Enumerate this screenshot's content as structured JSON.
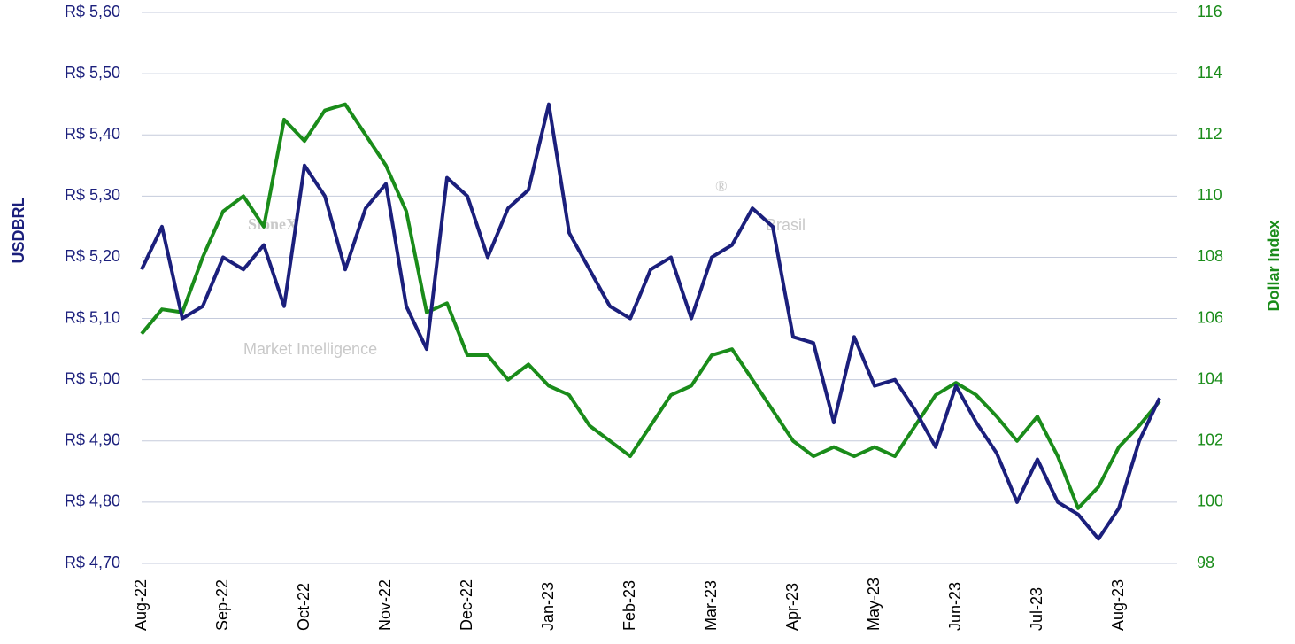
{
  "chart_data": {
    "type": "line",
    "y_label": "USDBRL",
    "y2_label": "Dollar Index",
    "watermark": {
      "brand": "StoneX",
      "mark": "®",
      "region": "Brasil",
      "tagline": "Market Intelligence"
    },
    "categories": [
      "Aug-22",
      null,
      null,
      null,
      "Sep-22",
      null,
      null,
      null,
      "Oct-22",
      null,
      null,
      null,
      "Nov-22",
      null,
      null,
      null,
      "Dec-22",
      null,
      null,
      null,
      "Jan-23",
      null,
      null,
      null,
      "Feb-23",
      null,
      null,
      null,
      "Mar-23",
      null,
      null,
      null,
      "Apr-23",
      null,
      null,
      null,
      "May-23",
      null,
      null,
      null,
      "Jun-23",
      null,
      null,
      null,
      "Jul-23",
      null,
      null,
      null,
      "Aug-23",
      null,
      null
    ],
    "series": [
      {
        "name": "USDBRL",
        "color": "#1b1f7c",
        "values": [
          5.18,
          5.25,
          5.1,
          5.12,
          5.2,
          5.18,
          5.22,
          5.12,
          5.35,
          5.3,
          5.18,
          5.28,
          5.32,
          5.12,
          5.05,
          5.33,
          5.3,
          5.2,
          5.28,
          5.31,
          5.45,
          5.24,
          5.18,
          5.12,
          5.1,
          5.18,
          5.2,
          5.1,
          5.2,
          5.22,
          5.28,
          5.25,
          5.07,
          5.06,
          4.93,
          5.07,
          4.99,
          5.0,
          4.95,
          4.89,
          4.99,
          4.93,
          4.88,
          4.8,
          4.87,
          4.8,
          4.78,
          4.74,
          4.79,
          4.9,
          4.97
        ]
      },
      {
        "name": "Dollar Index",
        "color": "#1a8c1a",
        "axis": "y2",
        "values": [
          105.5,
          106.3,
          106.2,
          108.0,
          109.5,
          110.0,
          109.0,
          112.5,
          111.8,
          112.8,
          113.0,
          112.0,
          111.0,
          109.5,
          106.2,
          106.5,
          104.8,
          104.8,
          104.0,
          104.5,
          103.8,
          103.5,
          102.5,
          102.0,
          101.5,
          102.5,
          103.5,
          103.8,
          104.8,
          105.0,
          104.0,
          103.0,
          102.0,
          101.5,
          101.8,
          101.5,
          101.8,
          101.5,
          102.5,
          103.5,
          103.9,
          103.5,
          102.8,
          102.0,
          102.8,
          101.5,
          99.8,
          100.5,
          101.8,
          102.5,
          103.3
        ]
      }
    ],
    "ylim": [
      4.7,
      5.6
    ],
    "yticks": [
      {
        "value": 4.7,
        "label": "R$ 4,70"
      },
      {
        "value": 4.8,
        "label": "R$ 4,80"
      },
      {
        "value": 4.9,
        "label": "R$ 4,90"
      },
      {
        "value": 5.0,
        "label": "R$ 5,00"
      },
      {
        "value": 5.1,
        "label": "R$ 5,10"
      },
      {
        "value": 5.2,
        "label": "R$ 5,20"
      },
      {
        "value": 5.3,
        "label": "R$ 5,30"
      },
      {
        "value": 5.4,
        "label": "R$ 5,40"
      },
      {
        "value": 5.5,
        "label": "R$ 5,50"
      },
      {
        "value": 5.6,
        "label": "R$ 5,60"
      }
    ],
    "y2lim": [
      98,
      116
    ],
    "y2ticks": [
      98,
      100,
      102,
      104,
      106,
      108,
      110,
      112,
      114,
      116
    ],
    "grid": true
  }
}
